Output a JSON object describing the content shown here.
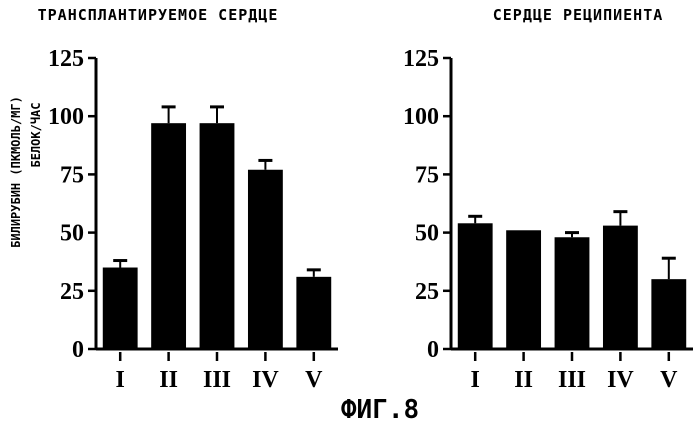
{
  "figure_label": "ФИГ.8",
  "chart_data": [
    {
      "type": "bar",
      "title": "ТРАНСПЛАНТИРУЕМОЕ СЕРДЦЕ",
      "ylabel_line1": "БИЛИРУБИН (ПКМОЛЬ/МГ)",
      "ylabel_line2": "БЕЛОК/ЧАС",
      "categories": [
        "I",
        "II",
        "III",
        "IV",
        "V"
      ],
      "values": [
        35,
        97,
        97,
        77,
        31
      ],
      "errors": [
        3,
        7,
        7,
        4,
        3
      ],
      "ylim": [
        0,
        125
      ],
      "yticks": [
        "0",
        "25",
        "50",
        "75",
        "100",
        "125"
      ],
      "bar_color": "#000000"
    },
    {
      "type": "bar",
      "title": "СЕРДЦЕ РЕЦИПИЕНТА",
      "categories": [
        "I",
        "II",
        "III",
        "IV",
        "V"
      ],
      "values": [
        54,
        51,
        48,
        53,
        30
      ],
      "errors": [
        3,
        0,
        2,
        6,
        9
      ],
      "ylim": [
        0,
        125
      ],
      "yticks": [
        "0",
        "25",
        "50",
        "75",
        "100",
        "125"
      ],
      "bar_color": "#000000"
    }
  ]
}
